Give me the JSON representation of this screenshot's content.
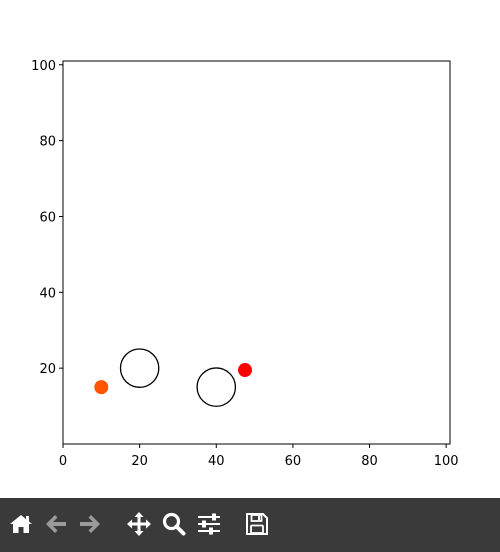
{
  "chart_data": {
    "type": "scatter",
    "title": "",
    "xlabel": "",
    "ylabel": "",
    "xlim": [
      0,
      101
    ],
    "ylim": [
      0,
      101
    ],
    "x_ticks": [
      0,
      20,
      40,
      60,
      80,
      100
    ],
    "y_ticks": [
      20,
      40,
      60,
      80,
      100
    ],
    "grid": false,
    "points": [
      {
        "x": 10,
        "y": 15,
        "color": "#ff5500",
        "filled": true,
        "size": "small"
      },
      {
        "x": 47.5,
        "y": 19.5,
        "color": "#ff0000",
        "filled": true,
        "size": "small"
      }
    ],
    "circles": [
      {
        "x": 20,
        "y": 20,
        "radius": 5,
        "edgecolor": "#000000",
        "filled": false
      },
      {
        "x": 40,
        "y": 15,
        "radius": 5,
        "edgecolor": "#000000",
        "filled": false
      }
    ]
  },
  "toolbar": {
    "background": "#3a3a3a",
    "active_color": "#ffffff",
    "disabled_color": "#9a9a9a",
    "buttons": [
      {
        "name": "home-icon",
        "enabled": true
      },
      {
        "name": "back-arrow-icon",
        "enabled": false
      },
      {
        "name": "forward-arrow-icon",
        "enabled": false
      },
      {
        "name": "pan-icon",
        "enabled": true
      },
      {
        "name": "zoom-icon",
        "enabled": true
      },
      {
        "name": "configure-subplots-icon",
        "enabled": true
      },
      {
        "name": "save-icon",
        "enabled": true
      }
    ]
  }
}
